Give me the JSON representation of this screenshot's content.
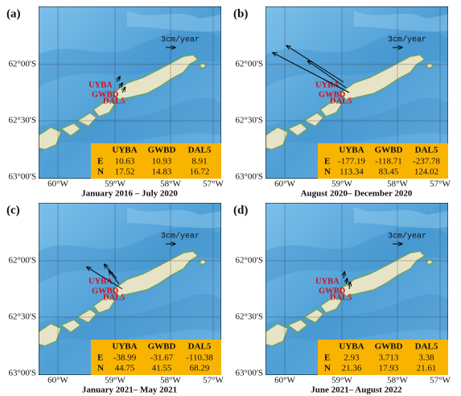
{
  "axes": {
    "lat": [
      "62°00'S",
      "62°30'S",
      "63°00'S"
    ],
    "lon": [
      "60°W",
      "59°W",
      "58°W",
      "57°W"
    ]
  },
  "panels": [
    {
      "label": "(a)",
      "caption": "January 2016 – July 2020",
      "scale_label": "3cm/year",
      "stations": [
        "UYBA",
        "GWBD",
        "DAL5"
      ],
      "table": {
        "header": [
          "UYBA",
          "GWBD",
          "DAL5"
        ],
        "rows": [
          [
            "E",
            10.63,
            10.93,
            8.91
          ],
          [
            "N",
            17.52,
            14.83,
            16.72
          ]
        ]
      }
    },
    {
      "label": "(b)",
      "caption": "August 2020– December 2020",
      "scale_label": "3cm/year",
      "stations": [
        "UYBA",
        "GWBD",
        "DAL5"
      ],
      "table": {
        "header": [
          "UYBA",
          "GWBD",
          "DAL5"
        ],
        "rows": [
          [
            "E",
            -177.19,
            -118.71,
            -237.78
          ],
          [
            "N",
            113.34,
            83.45,
            124.02
          ]
        ]
      }
    },
    {
      "label": "(c)",
      "caption": "January 2021– May 2021",
      "scale_label": "3cm/year",
      "stations": [
        "UYBA",
        "GWBD",
        "DAL5"
      ],
      "table": {
        "header": [
          "UYBA",
          "GWBD",
          "DAL5"
        ],
        "rows": [
          [
            "E",
            -38.99,
            -31.67,
            -110.38
          ],
          [
            "N",
            44.75,
            41.55,
            68.29
          ]
        ]
      }
    },
    {
      "label": "(d)",
      "caption": "June 2021– August 2022",
      "scale_label": "3cm/year",
      "stations": [
        "UYBA",
        "GWBD",
        "DAL5"
      ],
      "table": {
        "header": [
          "UYBA",
          "GWBD",
          "DAL5"
        ],
        "rows": [
          [
            "E",
            2.93,
            3.713,
            3.38
          ],
          [
            "N",
            21.36,
            17.93,
            21.61
          ]
        ]
      }
    }
  ]
}
